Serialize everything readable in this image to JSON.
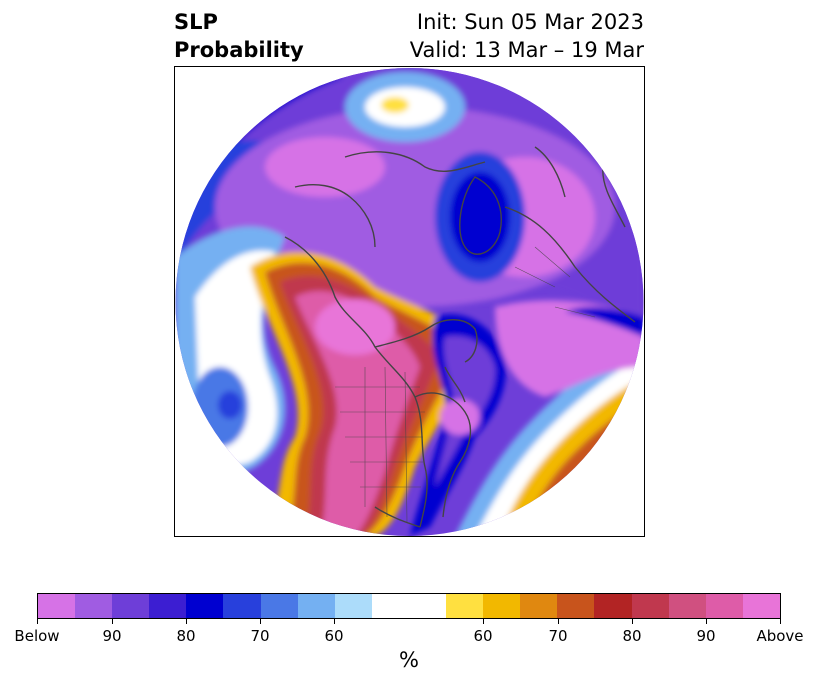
{
  "header": {
    "left_line1": "SLP",
    "left_line2": "Probability",
    "right_line1": "Init: Sun 05 Mar 2023",
    "right_line2": "Valid: 13 Mar – 19 Mar"
  },
  "colorbar": {
    "unit_label": "%",
    "colors": [
      "#d672e6",
      "#a05ce2",
      "#6e3ed8",
      "#3c1ed2",
      "#0000d0",
      "#2840dc",
      "#4a78e6",
      "#74b0f2",
      "#acdcfa",
      "#ffffff",
      "#ffe040",
      "#f2b800",
      "#e08810",
      "#c8541c",
      "#b22424",
      "#c0384e",
      "#d05080",
      "#de5ca8",
      "#e874d8"
    ],
    "tick_labels": [
      "Below",
      "90",
      "80",
      "70",
      "60",
      "60",
      "70",
      "80",
      "90",
      "Above"
    ]
  },
  "map": {
    "projection": "north-polar-stereographic",
    "colors": {
      "below_deep": "#0000d0",
      "below_mid": "#a05ce2",
      "below_light": "#d672e6",
      "neutral": "#ffffff",
      "above_light": "#ffe040",
      "above_mid": "#c0384e",
      "above_deep": "#de5ca8",
      "coast": "#444444"
    }
  }
}
